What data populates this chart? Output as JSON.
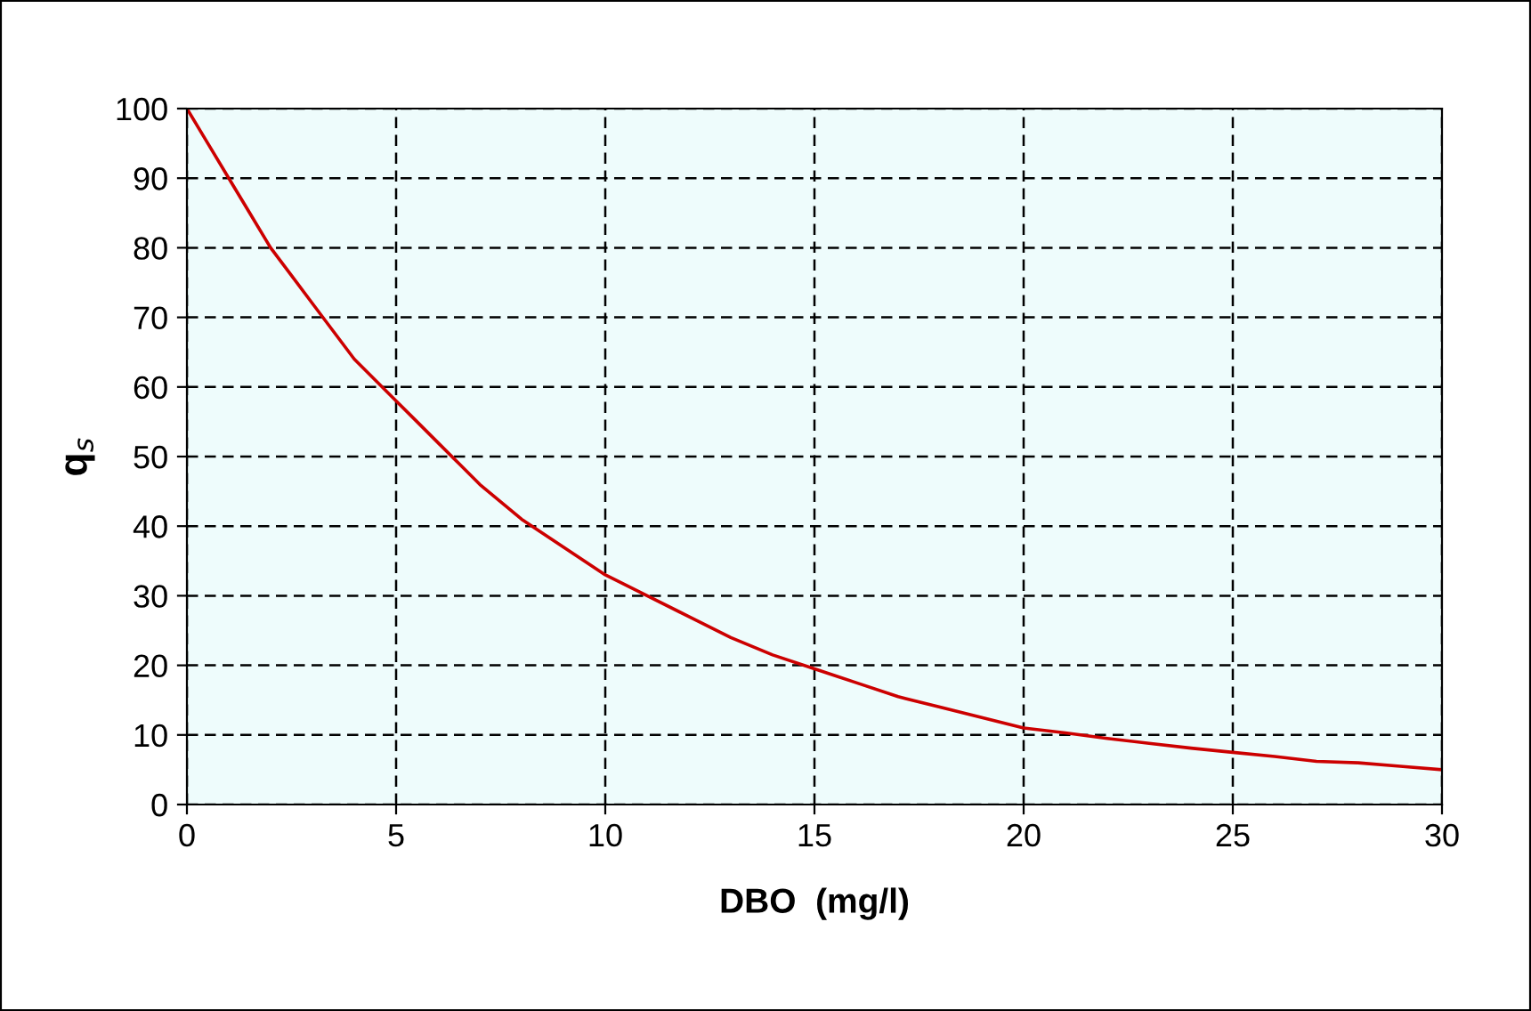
{
  "chart_data": {
    "type": "line",
    "xlabel": "DBO  (mg/l)",
    "ylabel": "q$_{s}$",
    "x": [
      0,
      0.5,
      1,
      1.5,
      2,
      2.5,
      3,
      3.5,
      4,
      4.5,
      5,
      5.5,
      6,
      6.5,
      7,
      7.5,
      8,
      9,
      10,
      11,
      12,
      13,
      14,
      15,
      16,
      17,
      18,
      19,
      20,
      21,
      22,
      23,
      24,
      25,
      26,
      27,
      28,
      29,
      30
    ],
    "series": [
      {
        "color": "#cc0000",
        "values": [
          100,
          95,
          90,
          85,
          80,
          76,
          72,
          68,
          64,
          61,
          58,
          55,
          52,
          49,
          46,
          43.5,
          41,
          37,
          33,
          30,
          27,
          24,
          21.5,
          19.5,
          17.5,
          15.5,
          14,
          12.5,
          11,
          10.3,
          9.5,
          8.8,
          8.1,
          7.5,
          6.9,
          6.2,
          6,
          5.5,
          5
        ]
      }
    ],
    "xlim": [
      0,
      30
    ],
    "xticks": [
      0,
      5,
      10,
      15,
      20,
      25,
      30
    ],
    "ylim": [
      0,
      100
    ],
    "yticks": [
      0,
      10,
      20,
      30,
      40,
      50,
      60,
      70,
      80,
      90,
      100
    ],
    "grid": true,
    "line_style": "solid",
    "marker": "none"
  }
}
